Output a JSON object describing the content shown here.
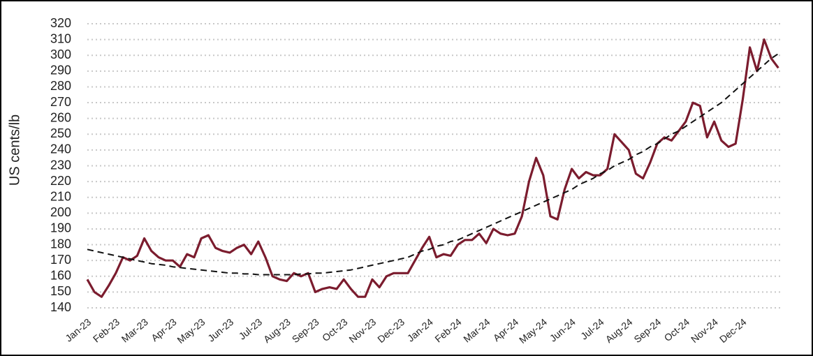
{
  "chart_data": {
    "type": "line",
    "y_label": "US cents/lb",
    "categories": [
      "Jan-23",
      null,
      null,
      null,
      "Feb-23",
      null,
      null,
      null,
      "Mar-23",
      null,
      null,
      null,
      "Apr-23",
      null,
      null,
      null,
      "May-23",
      null,
      null,
      null,
      "Jun-23",
      null,
      null,
      null,
      "Jul-23",
      null,
      null,
      null,
      "Aug-23",
      null,
      null,
      null,
      "Sep-23",
      null,
      null,
      null,
      "Oct-23",
      null,
      null,
      null,
      "Nov-23",
      null,
      null,
      null,
      "Dec-23",
      null,
      null,
      null,
      "Jan-24",
      null,
      null,
      null,
      "Feb-24",
      null,
      null,
      null,
      "Mar-24",
      null,
      null,
      null,
      "Apr-24",
      null,
      null,
      null,
      "May-24",
      null,
      null,
      null,
      "Jun-24",
      null,
      null,
      null,
      "Jul-24",
      null,
      null,
      null,
      "Aug-24",
      null,
      null,
      null,
      "Sep-24",
      null,
      null,
      null,
      "Oct-24",
      null,
      null,
      null,
      "Nov-24",
      null,
      null,
      null,
      "Dec-24",
      null,
      null,
      null,
      null,
      null
    ],
    "series": [
      {
        "color": "#7b1c2e",
        "dash": false,
        "values": [
          158,
          150,
          147,
          154,
          162,
          172,
          170,
          173,
          184,
          176,
          172,
          170,
          170,
          166,
          174,
          172,
          184,
          186,
          178,
          176,
          175,
          178,
          180,
          174,
          182,
          172,
          160,
          158,
          157,
          162,
          160,
          162,
          150,
          152,
          153,
          152,
          158,
          152,
          147,
          147,
          158,
          153,
          160,
          162,
          162,
          162,
          170,
          178,
          185,
          172,
          174,
          173,
          180,
          183,
          183,
          187,
          181,
          190,
          187,
          186,
          187,
          198,
          220,
          235,
          224,
          198,
          196,
          215,
          228,
          222,
          226,
          224,
          224,
          228,
          250,
          245,
          240,
          225,
          222,
          232,
          244,
          248,
          246,
          252,
          258,
          270,
          268,
          248,
          258,
          246,
          242,
          244,
          272,
          305,
          290,
          310,
          298,
          292
        ]
      },
      {
        "color": "#111111",
        "dash": true,
        "values": [
          177,
          176,
          175,
          174,
          173,
          172,
          171,
          170,
          169,
          168,
          167.5,
          167,
          166,
          165.5,
          165,
          164.5,
          164,
          163.5,
          163,
          162.5,
          162,
          162,
          161.5,
          161.5,
          161,
          161,
          161,
          161,
          161,
          161,
          161.5,
          161.5,
          162,
          162,
          162.5,
          163,
          163.5,
          164,
          165,
          166,
          167,
          168,
          169,
          170,
          171,
          172,
          174,
          176,
          177,
          179,
          180,
          182,
          183,
          185,
          187,
          189,
          191,
          193,
          195,
          197,
          199,
          201,
          203,
          205,
          207,
          209,
          211,
          213,
          215,
          218,
          220,
          222,
          225,
          227,
          230,
          232,
          234,
          237,
          239,
          242,
          244,
          247,
          250,
          252,
          255,
          258,
          261,
          264,
          267,
          270,
          274,
          278,
          282,
          286,
          290,
          294,
          298,
          301
        ]
      }
    ],
    "ylim": [
      140,
      320
    ],
    "yticks": [
      140,
      150,
      160,
      170,
      180,
      190,
      200,
      210,
      220,
      230,
      240,
      250,
      260,
      270,
      280,
      290,
      300,
      310,
      320
    ],
    "grid": true
  }
}
